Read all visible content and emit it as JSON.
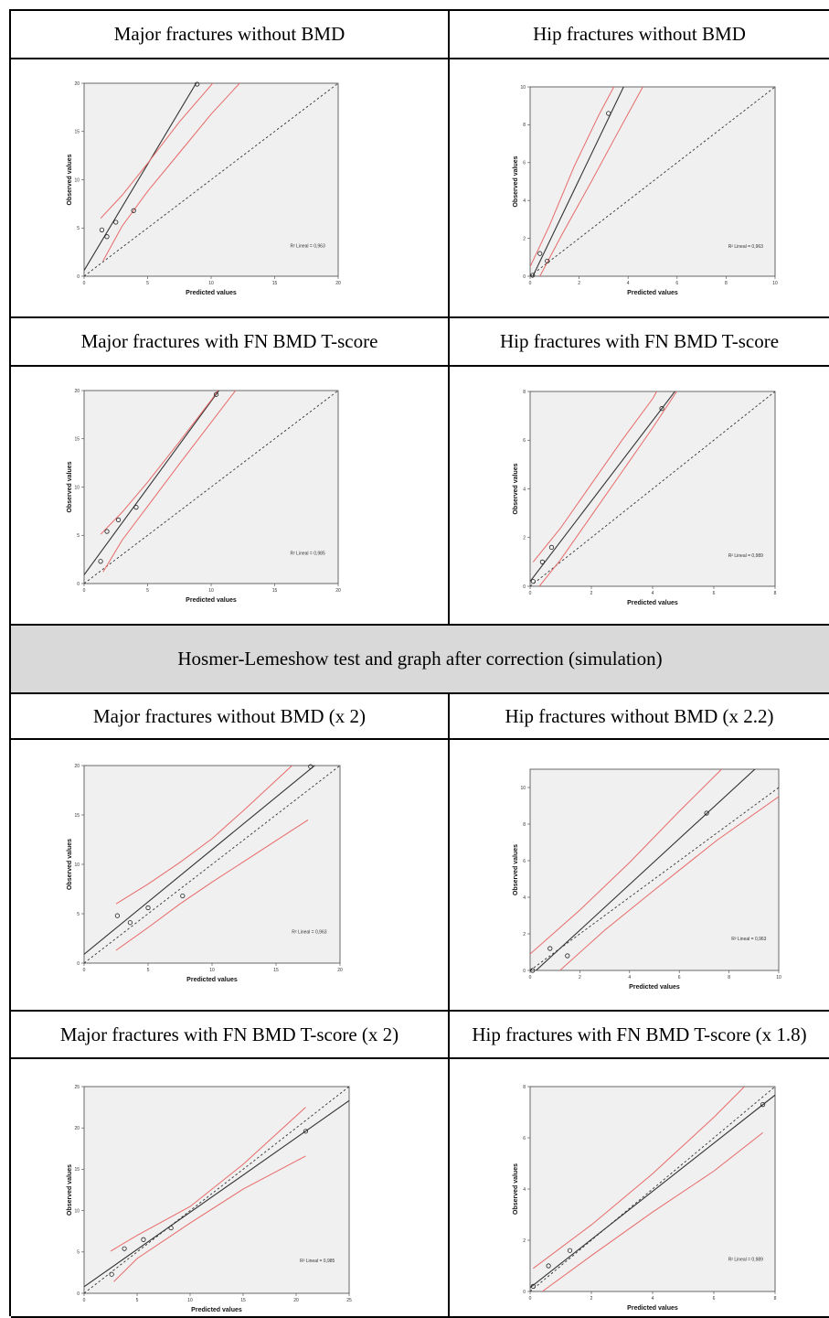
{
  "table": {
    "headers": {
      "r1c1": "Major fractures without BMD",
      "r1c2": "Hip fractures without BMD",
      "r2c1": "Major fractures with FN BMD T-score",
      "r2c2": "Hip fractures with FN BMD T-score",
      "band": "Hosmer-Lemeshow test and graph after correction (simulation)",
      "r3c1": "Major fractures without BMD (x 2)",
      "r3c2": "Hip fractures without BMD  (x 2.2)",
      "r4c1": "Major fractures with FN BMD T-score  (x 2)",
      "r4c2": "Hip fractures with FN BMD T-score  (x 1.8)"
    }
  },
  "colors": {
    "fit_line": "#333333",
    "ci_lines": "#e86a6a",
    "plot_bg": "#f0f0f0",
    "band_bg": "#d9d9d9"
  },
  "chart_data": [
    {
      "type": "scatter",
      "id": "c1",
      "xlabel": "Predicted values",
      "ylabel": "Observed values",
      "xlim": [
        0,
        20
      ],
      "ylim": [
        0,
        20
      ],
      "xticks": [
        "0",
        "5",
        "10",
        "15",
        "20"
      ],
      "yticks": [
        "0",
        "5",
        "10",
        "15",
        "20"
      ],
      "points": [
        [
          1.4,
          4.8
        ],
        [
          1.8,
          4.1
        ],
        [
          2.5,
          5.6
        ],
        [
          3.9,
          6.8
        ],
        [
          8.9,
          19.9
        ]
      ],
      "fit": {
        "intercept": 0.6,
        "slope": 2.2
      },
      "annotation": "R² Lineal = 0,963",
      "diagonal": true,
      "ci_upper": [
        [
          1.3,
          6.0
        ],
        [
          3.0,
          8.4
        ],
        [
          5.0,
          11.7
        ],
        [
          7.5,
          16.0
        ],
        [
          10.0,
          19.8
        ],
        [
          12.6,
          24.0
        ]
      ],
      "ci_lower": [
        [
          1.5,
          1.6
        ],
        [
          3.0,
          5.2
        ],
        [
          5.0,
          8.8
        ],
        [
          7.5,
          12.8
        ],
        [
          10.0,
          16.8
        ],
        [
          12.6,
          20.5
        ]
      ]
    },
    {
      "type": "scatter",
      "id": "c2",
      "xlabel": "Predicted values",
      "ylabel": "Observed values",
      "xlim": [
        0,
        10
      ],
      "ylim": [
        0,
        10
      ],
      "xticks": [
        "0",
        "2",
        "4",
        "6",
        "8",
        "10"
      ],
      "yticks": [
        "0",
        "2",
        "4",
        "6",
        "8",
        "10"
      ],
      "points": [
        [
          0.1,
          0.05
        ],
        [
          0.4,
          1.2
        ],
        [
          0.7,
          0.8
        ],
        [
          3.2,
          8.6
        ]
      ],
      "fit": {
        "intercept": -0.3,
        "slope": 2.7
      },
      "annotation": "R² Lineal = 0,963",
      "diagonal": true,
      "ci_upper": [
        [
          0.0,
          0.5
        ],
        [
          0.8,
          2.7
        ],
        [
          1.8,
          5.8
        ],
        [
          2.8,
          8.5
        ],
        [
          3.5,
          10.2
        ]
      ],
      "ci_lower": [
        [
          0.4,
          0.0
        ],
        [
          1.3,
          2.2
        ],
        [
          2.5,
          5.0
        ],
        [
          3.5,
          7.4
        ],
        [
          4.6,
          10.0
        ]
      ]
    },
    {
      "type": "scatter",
      "id": "c3",
      "xlabel": "Predicted values",
      "ylabel": "Observed values",
      "xlim": [
        0,
        20
      ],
      "ylim": [
        0,
        20
      ],
      "xticks": [
        "0",
        "5",
        "10",
        "15",
        "20"
      ],
      "yticks": [
        "0",
        "5",
        "10",
        "15",
        "20"
      ],
      "points": [
        [
          1.3,
          2.3
        ],
        [
          1.8,
          5.4
        ],
        [
          2.7,
          6.6
        ],
        [
          4.1,
          7.9
        ],
        [
          10.4,
          19.6
        ]
      ],
      "fit": {
        "intercept": 0.9,
        "slope": 1.8
      },
      "annotation": "R² Lineal = 0,985",
      "diagonal": true,
      "ci_upper": [
        [
          1.3,
          5.1
        ],
        [
          3.0,
          7.4
        ],
        [
          5.0,
          10.5
        ],
        [
          7.5,
          14.7
        ],
        [
          10.0,
          19.0
        ],
        [
          12.0,
          22.8
        ]
      ],
      "ci_lower": [
        [
          1.5,
          1.2
        ],
        [
          3.0,
          4.5
        ],
        [
          5.0,
          8.0
        ],
        [
          7.5,
          12.4
        ],
        [
          10.0,
          16.7
        ],
        [
          12.5,
          21.0
        ]
      ]
    },
    {
      "type": "scatter",
      "id": "c4",
      "xlabel": "Predicted values",
      "ylabel": "Observed values",
      "xlim": [
        0,
        8
      ],
      "ylim": [
        0,
        8
      ],
      "xticks": [
        "0",
        "2",
        "4",
        "6",
        "8"
      ],
      "yticks": [
        "0",
        "2",
        "4",
        "6",
        "8"
      ],
      "points": [
        [
          0.1,
          0.2
        ],
        [
          0.4,
          1.0
        ],
        [
          0.7,
          1.6
        ],
        [
          4.3,
          7.3
        ]
      ],
      "fit": {
        "intercept": 0.2,
        "slope": 1.65
      },
      "annotation": "R² Lineal = 0,989",
      "diagonal": true,
      "ci_upper": [
        [
          0.1,
          1.0
        ],
        [
          1.0,
          2.4
        ],
        [
          2.0,
          4.2
        ],
        [
          3.0,
          6.0
        ],
        [
          4.0,
          7.7
        ],
        [
          4.4,
          8.6
        ]
      ],
      "ci_lower": [
        [
          0.3,
          0.0
        ],
        [
          1.0,
          1.1
        ],
        [
          2.0,
          2.9
        ],
        [
          3.0,
          4.7
        ],
        [
          4.0,
          6.5
        ],
        [
          5.0,
          8.4
        ]
      ]
    },
    {
      "type": "scatter",
      "id": "c5",
      "xlabel": "Predicted values",
      "ylabel": "Observed values",
      "xlim": [
        0,
        20
      ],
      "ylim": [
        0,
        20
      ],
      "xticks": [
        "0",
        "5",
        "10",
        "15",
        "20"
      ],
      "yticks": [
        "0",
        "5",
        "10",
        "15",
        "20"
      ],
      "points": [
        [
          2.6,
          4.8
        ],
        [
          3.6,
          4.1
        ],
        [
          5.0,
          5.6
        ],
        [
          7.7,
          6.8
        ],
        [
          17.7,
          19.9
        ]
      ],
      "fit": {
        "intercept": 0.9,
        "slope": 1.06
      },
      "annotation": "R² Lineal = 0,963",
      "diagonal": true,
      "ci_upper": [
        [
          2.5,
          6.0
        ],
        [
          5.0,
          8.0
        ],
        [
          7.5,
          10.2
        ],
        [
          10.0,
          12.6
        ],
        [
          12.5,
          15.5
        ],
        [
          15.0,
          18.5
        ],
        [
          17.5,
          21.5
        ]
      ],
      "ci_lower": [
        [
          2.5,
          1.3
        ],
        [
          5.0,
          3.6
        ],
        [
          7.5,
          6.0
        ],
        [
          10.0,
          8.2
        ],
        [
          12.5,
          10.3
        ],
        [
          15.0,
          12.4
        ],
        [
          17.5,
          14.5
        ]
      ]
    },
    {
      "type": "scatter",
      "id": "c6",
      "xlabel": "Predicted values",
      "ylabel": "Observed values",
      "xlim": [
        0,
        10
      ],
      "ylim": [
        0,
        11
      ],
      "xticks": [
        "0",
        "2",
        "4",
        "6",
        "8",
        "10"
      ],
      "yticks": [
        "0",
        "2",
        "4",
        "6",
        "8",
        "10"
      ],
      "points": [
        [
          0.1,
          0.0
        ],
        [
          0.8,
          1.2
        ],
        [
          1.5,
          0.8
        ],
        [
          7.1,
          8.6
        ]
      ],
      "fit": {
        "intercept": -0.3,
        "slope": 1.25
      },
      "annotation": "R² Lineal = 0,963",
      "diagonal": true,
      "ci_upper": [
        [
          0.0,
          0.9
        ],
        [
          2.0,
          3.3
        ],
        [
          4.0,
          5.9
        ],
        [
          6.0,
          8.7
        ],
        [
          8.0,
          11.4
        ]
      ],
      "ci_lower": [
        [
          1.2,
          0.0
        ],
        [
          3.0,
          2.2
        ],
        [
          5.0,
          4.4
        ],
        [
          7.5,
          7.1
        ],
        [
          10.0,
          9.5
        ]
      ]
    },
    {
      "type": "scatter",
      "id": "c7",
      "xlabel": "Predicted values",
      "ylabel": "Observed values",
      "xlim": [
        0,
        25
      ],
      "ylim": [
        0,
        25
      ],
      "xticks": [
        "0",
        "5",
        "10",
        "15",
        "20",
        "25"
      ],
      "yticks": [
        "0",
        "5",
        "10",
        "15",
        "20",
        "25"
      ],
      "points": [
        [
          2.6,
          2.3
        ],
        [
          3.8,
          5.4
        ],
        [
          5.6,
          6.5
        ],
        [
          8.2,
          7.9
        ],
        [
          20.9,
          19.6
        ]
      ],
      "fit": {
        "intercept": 0.8,
        "slope": 0.9
      },
      "annotation": "R² Lineal = 0,985",
      "diagonal": true,
      "ci_upper": [
        [
          2.5,
          5.1
        ],
        [
          5.0,
          7.0
        ],
        [
          10.0,
          10.5
        ],
        [
          15.0,
          15.6
        ],
        [
          20.9,
          22.5
        ]
      ],
      "ci_lower": [
        [
          2.8,
          1.4
        ],
        [
          5.0,
          4.2
        ],
        [
          10.0,
          8.5
        ],
        [
          15.0,
          12.6
        ],
        [
          20.9,
          16.6
        ]
      ]
    },
    {
      "type": "scatter",
      "id": "c8",
      "xlabel": "Predicted values",
      "ylabel": "Observed values",
      "xlim": [
        0,
        8
      ],
      "ylim": [
        0,
        8
      ],
      "xticks": [
        "0",
        "2",
        "4",
        "6",
        "8"
      ],
      "yticks": [
        "0",
        "2",
        "4",
        "6",
        "8"
      ],
      "points": [
        [
          0.1,
          0.2
        ],
        [
          0.6,
          1.0
        ],
        [
          1.3,
          1.6
        ],
        [
          7.6,
          7.3
        ]
      ],
      "fit": {
        "intercept": 0.15,
        "slope": 0.94
      },
      "annotation": "R² Lineal = 0,989",
      "diagonal": true,
      "ci_upper": [
        [
          0.1,
          0.9
        ],
        [
          2.0,
          2.6
        ],
        [
          4.0,
          4.6
        ],
        [
          6.0,
          6.8
        ],
        [
          7.0,
          8.0
        ]
      ],
      "ci_lower": [
        [
          0.4,
          0.0
        ],
        [
          2.0,
          1.4
        ],
        [
          4.0,
          3.1
        ],
        [
          6.0,
          4.7
        ],
        [
          7.6,
          6.2
        ]
      ]
    }
  ]
}
